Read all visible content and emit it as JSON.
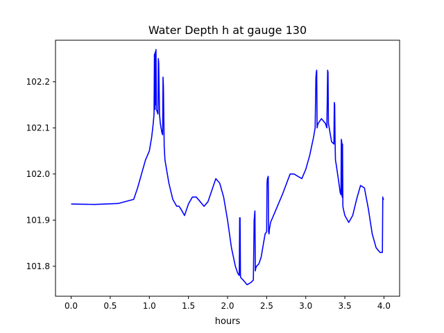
{
  "chart_data": {
    "type": "line",
    "title": "Water Depth h at gauge 130",
    "xlabel": "hours",
    "ylabel": "",
    "xlim": [
      -0.2,
      4.2
    ],
    "ylim": [
      101.735,
      102.29
    ],
    "grid": false,
    "x_ticks": [
      0.0,
      0.5,
      1.0,
      1.5,
      2.0,
      2.5,
      3.0,
      3.5,
      4.0
    ],
    "x_tick_labels": [
      "0.0",
      "0.5",
      "1.0",
      "1.5",
      "2.0",
      "2.5",
      "3.0",
      "3.5",
      "4.0"
    ],
    "y_ticks": [
      101.8,
      101.9,
      102.0,
      102.1,
      102.2
    ],
    "y_tick_labels": [
      "101.8",
      "101.9",
      "102.0",
      "102.1",
      "102.2"
    ],
    "series": [
      {
        "color": "#0000ff",
        "x": [
          0.0,
          0.3,
          0.6,
          0.8,
          0.85,
          0.9,
          0.95,
          1.0,
          1.03,
          1.05,
          1.06,
          1.065,
          1.07,
          1.075,
          1.08,
          1.085,
          1.09,
          1.1,
          1.11,
          1.115,
          1.12,
          1.13,
          1.135,
          1.14,
          1.15,
          1.16,
          1.17,
          1.175,
          1.18,
          1.19,
          1.2,
          1.25,
          1.3,
          1.35,
          1.38,
          1.4,
          1.45,
          1.5,
          1.55,
          1.6,
          1.65,
          1.7,
          1.75,
          1.8,
          1.85,
          1.9,
          1.95,
          2.0,
          2.05,
          2.1,
          2.13,
          2.15,
          2.155,
          2.16,
          2.165,
          2.17,
          2.2,
          2.25,
          2.3,
          2.33,
          2.34,
          2.345,
          2.35,
          2.355,
          2.36,
          2.37,
          2.4,
          2.43,
          2.46,
          2.48,
          2.5,
          2.505,
          2.51,
          2.52,
          2.525,
          2.53,
          2.535,
          2.55,
          2.6,
          2.7,
          2.8,
          2.85,
          2.9,
          2.95,
          3.0,
          3.05,
          3.1,
          3.12,
          3.13,
          3.135,
          3.14,
          3.145,
          3.15,
          3.16,
          3.2,
          3.25,
          3.27,
          3.28,
          3.285,
          3.29,
          3.3,
          3.31,
          3.33,
          3.36,
          3.365,
          3.37,
          3.375,
          3.38,
          3.39,
          3.42,
          3.44,
          3.45,
          3.455,
          3.46,
          3.465,
          3.47,
          3.475,
          3.48,
          3.5,
          3.55,
          3.6,
          3.65,
          3.7,
          3.75,
          3.8,
          3.85,
          3.9,
          3.95,
          3.98,
          3.985,
          3.99,
          4.0
        ],
        "y": [
          101.935,
          101.934,
          101.936,
          101.945,
          101.97,
          102.0,
          102.03,
          102.05,
          102.08,
          102.11,
          102.13,
          102.26,
          102.14,
          102.265,
          102.15,
          102.27,
          102.14,
          102.135,
          102.13,
          102.25,
          102.24,
          102.13,
          102.12,
          102.11,
          102.1,
          102.09,
          102.085,
          102.21,
          102.19,
          102.06,
          102.03,
          101.98,
          101.945,
          101.93,
          101.93,
          101.925,
          101.91,
          101.935,
          101.95,
          101.95,
          101.94,
          101.93,
          101.94,
          101.965,
          101.99,
          101.98,
          101.95,
          101.9,
          101.84,
          101.8,
          101.785,
          101.78,
          101.905,
          101.905,
          101.78,
          101.775,
          101.77,
          101.76,
          101.765,
          101.77,
          101.9,
          101.91,
          101.92,
          101.79,
          101.795,
          101.8,
          101.805,
          101.82,
          101.85,
          101.87,
          101.875,
          101.98,
          101.99,
          101.995,
          101.875,
          101.87,
          101.88,
          101.895,
          101.915,
          101.955,
          102.0,
          102.0,
          101.995,
          101.99,
          102.01,
          102.04,
          102.08,
          102.1,
          102.21,
          102.22,
          102.225,
          102.1,
          102.105,
          102.11,
          102.12,
          102.11,
          102.1,
          102.225,
          102.22,
          102.11,
          102.1,
          102.09,
          102.07,
          102.065,
          102.155,
          102.15,
          102.07,
          102.03,
          102.02,
          101.985,
          101.96,
          101.955,
          102.075,
          102.07,
          101.95,
          102.065,
          101.93,
          101.925,
          101.91,
          101.895,
          101.91,
          101.945,
          101.975,
          101.97,
          101.925,
          101.87,
          101.84,
          101.83,
          101.83,
          101.95,
          101.945,
          101.945
        ]
      }
    ]
  }
}
